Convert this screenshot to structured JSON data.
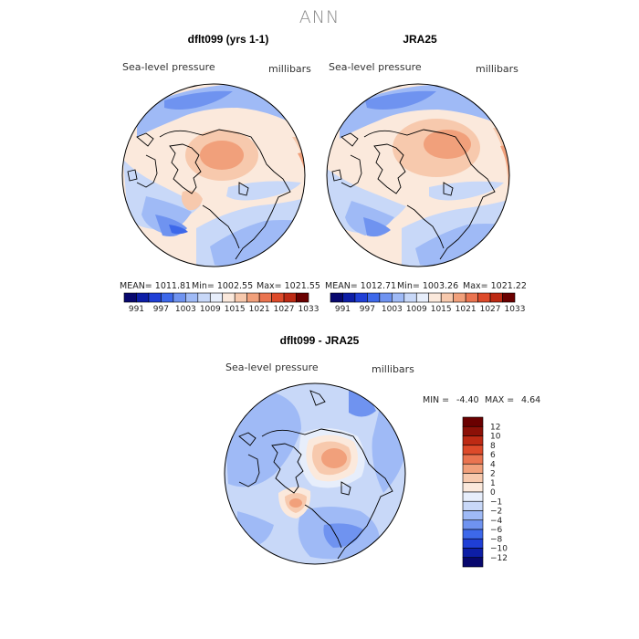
{
  "figure": {
    "title": "ANN"
  },
  "chart_data": [
    {
      "type": "heatmap",
      "title": "dflt099 (yrs 1-1)",
      "variable": "Sea-level pressure",
      "units": "millibars",
      "projection": "polar stereographic (north)",
      "stats": {
        "mean": "MEAN= 1011.81",
        "min": "Min= 1002.55",
        "max": "Max= 1021.55"
      },
      "colorbar": {
        "orientation": "horizontal",
        "levels": [
          "991",
          "997",
          "1003",
          "1009",
          "1015",
          "1021",
          "1027",
          "1033"
        ]
      }
    },
    {
      "type": "heatmap",
      "title": "JRA25",
      "variable": "Sea-level pressure",
      "units": "millibars",
      "projection": "polar stereographic (north)",
      "stats": {
        "mean": "MEAN= 1012.71",
        "min": "Min= 1003.26",
        "max": "Max= 1021.22"
      },
      "colorbar": {
        "orientation": "horizontal",
        "levels": [
          "991",
          "997",
          "1003",
          "1009",
          "1015",
          "1021",
          "1027",
          "1033"
        ]
      }
    },
    {
      "type": "heatmap",
      "title": "dflt099 - JRA25",
      "variable": "Sea-level pressure",
      "units": "millibars",
      "projection": "polar stereographic (north)",
      "stats": {
        "min_label": "MIN =",
        "min": "-4.40",
        "max_label": "MAX =",
        "max": "4.64"
      },
      "colorbar": {
        "orientation": "vertical",
        "levels": [
          "12",
          "10",
          "8",
          "6",
          "4",
          "2",
          "1",
          "0",
          "−1",
          "−2",
          "−4",
          "−6",
          "−8",
          "−10",
          "−12"
        ]
      }
    }
  ],
  "palette": {
    "diverging": [
      "#08086e",
      "#0d1ea6",
      "#1f3fd6",
      "#3d68ea",
      "#6f93f0",
      "#9fbaf6",
      "#c8d8f8",
      "#e7eefb",
      "#fbe9dc",
      "#f7c9ad",
      "#f1a07b",
      "#ea7450",
      "#dd4a2a",
      "#bd2a14",
      "#8c1007",
      "#6a0000"
    ],
    "horizontal_bar": [
      "#08086e",
      "#0d1ea6",
      "#1f3fd6",
      "#3d68ea",
      "#6f93f0",
      "#9fbaf6",
      "#c8d8f8",
      "#e7eefb",
      "#fbe9dc",
      "#f7c9ad",
      "#f1a07b",
      "#ea7450",
      "#dd4a2a",
      "#bd2a14",
      "#6a0000"
    ]
  }
}
